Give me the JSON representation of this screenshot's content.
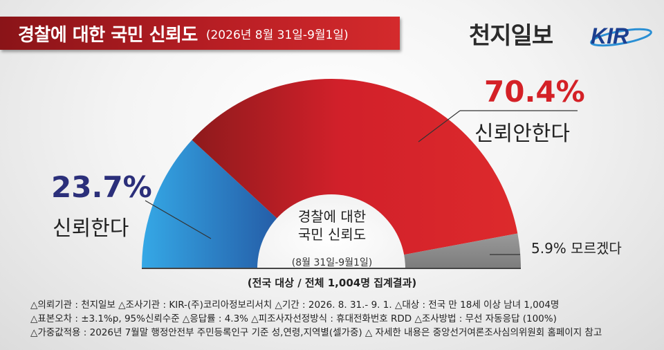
{
  "header": {
    "title": "경찰에 대한 국민 신뢰도",
    "period": "(2026년 8월 31일-9월1일)",
    "brand": "천지일보",
    "partner_logo_text": "KIR"
  },
  "chart_data": {
    "type": "pie",
    "subtype": "semicircle-donut",
    "center_title_line1": "경찰에 대한",
    "center_title_line2": "국민 신뢰도",
    "center_date": "(8월 31일-9월1일)",
    "slices": [
      {
        "label": "신뢰한다",
        "value": 23.7,
        "value_text": "23.7%",
        "color": "#2a8fd4",
        "text_color": "#2b2f7a"
      },
      {
        "label": "신뢰안한다",
        "value": 70.4,
        "value_text": "70.4%",
        "color": "#d7222a",
        "text_color": "#d42127"
      },
      {
        "label": "모르겠다",
        "value": 5.9,
        "value_text": "5.9%",
        "color": "#8c8c8c",
        "text_color": "#222222"
      }
    ]
  },
  "total_note": "(전국 대상 / 전체 1,004명 집계결과)",
  "notes": {
    "line1": "△의뢰기관 : 천지일보   △조사기관 : KIR-(주)코리아정보리서치   △기간 : 2026. 8. 31.- 9. 1.  △대상 : 전국 만 18세 이상 남녀 1,004명",
    "line2": "△표본오차 : ±3.1%p, 95%신뢰수준   △응답률 : 4.3%  △피조사자선정방식 : 휴대전화번호 RDD   △조사방법 : 무선 자동응답 (100%)",
    "line3": "△가중값적용 : 2026년 7월말 행정안전부 주민등록인구 기준 성,연령,지역별(셀가중)  △ 자세한 내용은 중앙선거여론조사심의위원회 홈페이지 참고"
  }
}
